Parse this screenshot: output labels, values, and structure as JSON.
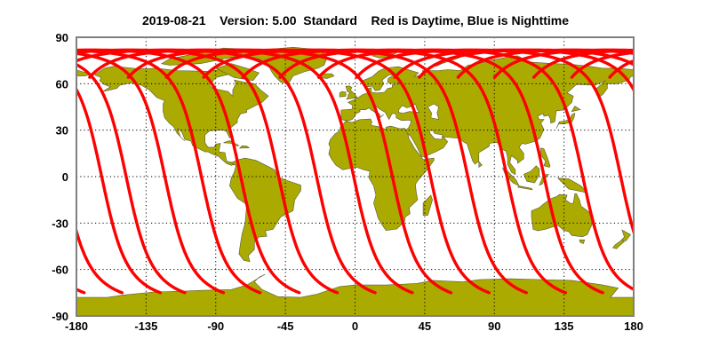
{
  "title": "2019-08-21    Version: 5.00  Standard    Red is Daytime, Blue is Nighttime",
  "chart_data": {
    "type": "map",
    "projection": "equirectangular",
    "title": "2019-08-21    Version: 5.00  Standard    Red is Daytime, Blue is Nighttime",
    "xlim": [
      -180,
      180
    ],
    "ylim": [
      -90,
      90
    ],
    "x_ticks": [
      "-180",
      "-135",
      "-90",
      "-45",
      "0",
      "45",
      "90",
      "135",
      "180"
    ],
    "y_ticks": [
      "90",
      "60",
      "30",
      "0",
      "-30",
      "-60",
      "-90"
    ],
    "grid": true,
    "grid_style": "dotted",
    "colors": {
      "land": "#aaaa00",
      "coast": "#5a5a3a",
      "daytime_track": "#ff0000",
      "nighttime_track": "#0000ff",
      "frame": "#808080"
    },
    "tracks": {
      "kind": "daytime ascending orbit ground tracks",
      "color": "daytime",
      "southern_end_latitude": -75,
      "northern_max_latitude": 81.8,
      "southern_end_longitudes": [
        -175,
        -150.5,
        -125.8,
        -110,
        -85,
        -61.4,
        -36,
        -11.5,
        13,
        37,
        62,
        86.6,
        110.7,
        136,
        160
      ]
    }
  }
}
